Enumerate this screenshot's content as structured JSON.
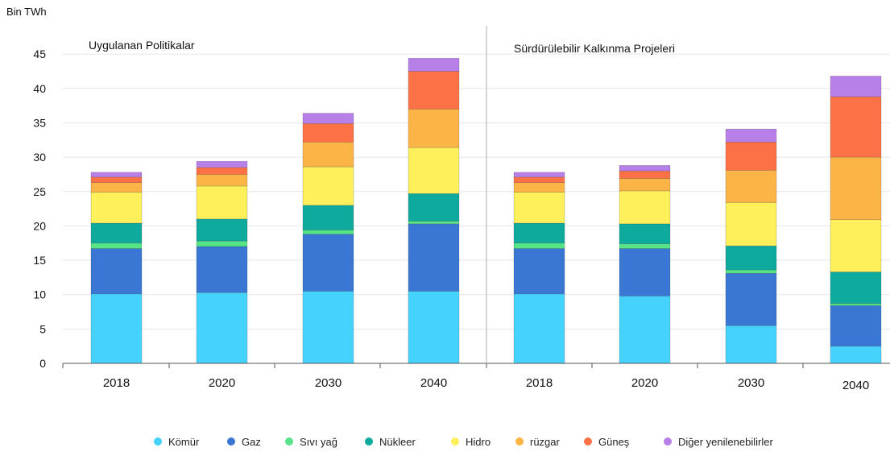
{
  "chart_data": {
    "type": "bar",
    "stacked": true,
    "unit_label": "Bin TWh",
    "ylim": [
      0,
      45
    ],
    "yticks": [
      0,
      5,
      10,
      15,
      20,
      25,
      30,
      35,
      40,
      45
    ],
    "grid": true,
    "legend_position": "bottom",
    "categories": [
      "Kömür",
      "Gaz",
      "Sıvı yağ",
      "Nükleer",
      "Hidro",
      "rüzgar",
      "Güneş",
      "Diğer yenilenebilirler"
    ],
    "colors": [
      "#45d3fd",
      "#3a76d4",
      "#57e387",
      "#0eaa9e",
      "#fdf05a",
      "#fdb446",
      "#fd7147",
      "#b77fe8"
    ],
    "panels": [
      {
        "title": "Uygulanan Politikalar",
        "x": [
          "2018",
          "2020",
          "2030",
          "2040"
        ],
        "values": [
          [
            10.1,
            6.6,
            0.8,
            2.9,
            4.5,
            1.4,
            0.8,
            0.7
          ],
          [
            10.3,
            6.7,
            0.8,
            3.2,
            4.8,
            1.7,
            1.0,
            0.9
          ],
          [
            10.5,
            8.3,
            0.6,
            3.6,
            5.6,
            3.6,
            2.7,
            1.5
          ],
          [
            10.5,
            9.8,
            0.4,
            4.0,
            6.7,
            5.6,
            5.5,
            1.9
          ]
        ]
      },
      {
        "title": "Sürdürülebilir Kalkınma Projeleri",
        "x": [
          "2018",
          "2020",
          "2030",
          "2040"
        ],
        "values": [
          [
            10.1,
            6.6,
            0.8,
            2.9,
            4.5,
            1.4,
            0.8,
            0.7
          ],
          [
            9.8,
            6.9,
            0.7,
            2.9,
            4.8,
            1.8,
            1.1,
            0.8
          ],
          [
            5.5,
            7.6,
            0.5,
            3.5,
            6.3,
            4.7,
            4.1,
            1.9
          ],
          [
            2.5,
            5.9,
            0.3,
            4.6,
            7.6,
            9.1,
            8.8,
            3.0
          ]
        ]
      }
    ]
  }
}
